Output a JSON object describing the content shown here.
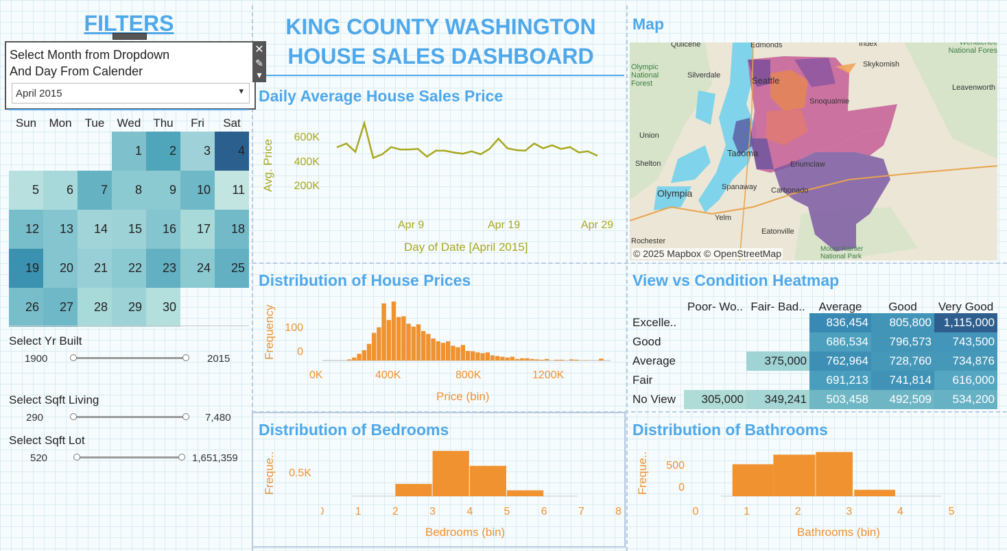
{
  "filters": {
    "title": "FILTERS",
    "dropdown_prompt_line1": "Select Month from Dropdown",
    "dropdown_prompt_line2": "And Day From Calender",
    "month_value": "April 2015",
    "close_icon": "close-icon",
    "pin_icon": "pin-icon",
    "calendar": {
      "days_of_week": [
        "Sun",
        "Mon",
        "Tue",
        "Wed",
        "Thu",
        "Fri",
        "Sat"
      ],
      "cells": [
        {
          "day": "1",
          "col": 3,
          "row": 0,
          "color": "#7ec0cc"
        },
        {
          "day": "2",
          "col": 4,
          "row": 0,
          "color": "#4fa6ba"
        },
        {
          "day": "3",
          "col": 5,
          "row": 0,
          "color": "#9ed2d8"
        },
        {
          "day": "4",
          "col": 6,
          "row": 0,
          "color": "#2b5f8e"
        },
        {
          "day": "5",
          "col": 0,
          "row": 1,
          "color": "#b7e0df"
        },
        {
          "day": "6",
          "col": 1,
          "row": 1,
          "color": "#a8d9da"
        },
        {
          "day": "7",
          "col": 2,
          "row": 1,
          "color": "#65b2c3"
        },
        {
          "day": "8",
          "col": 3,
          "row": 1,
          "color": "#8ccad2"
        },
        {
          "day": "9",
          "col": 4,
          "row": 1,
          "color": "#8ccad2"
        },
        {
          "day": "10",
          "col": 5,
          "row": 1,
          "color": "#6fb8c7"
        },
        {
          "day": "11",
          "col": 6,
          "row": 1,
          "color": "#c2e5e2"
        },
        {
          "day": "12",
          "col": 0,
          "row": 2,
          "color": "#78bdca"
        },
        {
          "day": "13",
          "col": 1,
          "row": 2,
          "color": "#85c5cf"
        },
        {
          "day": "14",
          "col": 2,
          "row": 2,
          "color": "#a0d4d8"
        },
        {
          "day": "15",
          "col": 3,
          "row": 2,
          "color": "#9dd2d7"
        },
        {
          "day": "16",
          "col": 4,
          "row": 2,
          "color": "#85c5cf"
        },
        {
          "day": "17",
          "col": 5,
          "row": 2,
          "color": "#a9dada"
        },
        {
          "day": "18",
          "col": 6,
          "row": 2,
          "color": "#73bac8"
        },
        {
          "day": "19",
          "col": 0,
          "row": 3,
          "color": "#3b92b0"
        },
        {
          "day": "20",
          "col": 1,
          "row": 3,
          "color": "#85c5cf"
        },
        {
          "day": "21",
          "col": 2,
          "row": 3,
          "color": "#98cfd6"
        },
        {
          "day": "22",
          "col": 3,
          "row": 3,
          "color": "#8ccad2"
        },
        {
          "day": "23",
          "col": 4,
          "row": 3,
          "color": "#63b0c2"
        },
        {
          "day": "24",
          "col": 5,
          "row": 3,
          "color": "#8ccad2"
        },
        {
          "day": "25",
          "col": 6,
          "row": 3,
          "color": "#63b0c2"
        },
        {
          "day": "26",
          "col": 0,
          "row": 4,
          "color": "#78bdca"
        },
        {
          "day": "27",
          "col": 1,
          "row": 4,
          "color": "#6fb8c7"
        },
        {
          "day": "28",
          "col": 2,
          "row": 4,
          "color": "#a9dada"
        },
        {
          "day": "29",
          "col": 3,
          "row": 4,
          "color": "#9dd2d7"
        },
        {
          "day": "30",
          "col": 4,
          "row": 4,
          "color": "#b3dfdd"
        }
      ]
    },
    "sliders": [
      {
        "label": "Select Yr Built",
        "min": "1900",
        "max": "2015"
      },
      {
        "label": "Select Sqft Living",
        "min": "290",
        "max": "7,480"
      },
      {
        "label": "Select Sqft Lot",
        "min": "520",
        "max": "1,651,359"
      }
    ]
  },
  "header": {
    "title_line1": "KING COUNTY WASHINGTON",
    "title_line2": "HOUSE SALES DASHBOARD"
  },
  "colors": {
    "title_blue": "#4ea8ea",
    "line_olive": "#a8a81e",
    "bar_orange": "#f0922f",
    "axis_orange": "#f0922f"
  },
  "daily_chart": {
    "title": "Daily Average House Sales Price",
    "ylabel": "Avg. Price",
    "xlabel": "Day of Date [April 2015]",
    "ytick_labels": [
      "600K",
      "400K",
      "200K"
    ],
    "xtick_labels": [
      "Apr 9",
      "Apr 19",
      "Apr 29"
    ]
  },
  "map": {
    "title": "Map",
    "attribution": "© 2025 Mapbox © OpenStreetMap",
    "places": [
      "Quilcene",
      "Edmonds",
      "Index",
      "Wenatchee National Fores",
      "Olympic National Forest",
      "Silverdale",
      "Skykomish",
      "Seattle",
      "Leavenworth",
      "Union",
      "Snoqualmie",
      "Shelton",
      "Tacoma",
      "Enumclaw",
      "Spanaway",
      "Carbonado",
      "Olympia",
      "Yelm",
      "Eatonville",
      "Rochester",
      "Mount Rainier National Park"
    ]
  },
  "price_chart": {
    "title": "Distribution of House Prices",
    "ylabel": "Frequency",
    "xlabel": "Price (bin)",
    "ytick_labels": [
      "100",
      "0"
    ],
    "xtick_labels": [
      "0K",
      "400K",
      "800K",
      "1200K"
    ]
  },
  "heatmap": {
    "title": "View vs Condition Heatmap",
    "columns": [
      "Poor- Wo..",
      "Fair- Bad..",
      "Average",
      "Good",
      "Very Good"
    ],
    "rows": [
      "Excelle..",
      "Good",
      "Average",
      "Fair",
      "No View"
    ]
  },
  "bedrooms_chart": {
    "title": "Distribution of Bedrooms",
    "ylabel": "Freque..",
    "xlabel": "Bedrooms (bin)",
    "ytick_labels": [
      "0.5K"
    ],
    "xtick_labels": [
      "0",
      "1",
      "2",
      "3",
      "4",
      "5",
      "6",
      "7",
      "8"
    ]
  },
  "bathrooms_chart": {
    "title": "Distribution of Bathrooms",
    "ylabel": "Freque..",
    "xlabel": "Bathrooms (bin)",
    "ytick_labels": [
      "500",
      "0"
    ],
    "xtick_labels": [
      "0",
      "1",
      "2",
      "3",
      "4",
      "5"
    ]
  },
  "chart_data": [
    {
      "type": "line",
      "title": "Daily Average House Sales Price",
      "xlabel": "Day of Date [April 2015]",
      "ylabel": "Avg. Price",
      "x": [
        1,
        2,
        3,
        4,
        5,
        6,
        7,
        8,
        9,
        10,
        11,
        12,
        13,
        14,
        15,
        16,
        17,
        18,
        19,
        20,
        21,
        22,
        23,
        24,
        25,
        26,
        27,
        28,
        29,
        30
      ],
      "values": [
        545000,
        575000,
        505000,
        745000,
        455000,
        485000,
        545000,
        525000,
        525000,
        530000,
        465000,
        515000,
        515000,
        500000,
        490000,
        510000,
        485000,
        530000,
        615000,
        535000,
        520000,
        515000,
        575000,
        535000,
        560000,
        530000,
        545000,
        500000,
        510000,
        475000
      ],
      "ylim": [
        0,
        800000
      ]
    },
    {
      "type": "bar",
      "title": "Distribution of House Prices",
      "xlabel": "Price (bin)",
      "ylabel": "Frequency",
      "categories": [
        "25K",
        "50K",
        "75K",
        "100K",
        "125K",
        "150K",
        "175K",
        "200K",
        "225K",
        "250K",
        "275K",
        "300K",
        "325K",
        "350K",
        "375K",
        "400K",
        "425K",
        "450K",
        "475K",
        "500K",
        "525K",
        "550K",
        "575K",
        "600K",
        "625K",
        "650K",
        "675K",
        "700K",
        "725K",
        "750K",
        "775K",
        "800K",
        "825K",
        "850K",
        "875K",
        "900K",
        "925K",
        "950K",
        "975K",
        "1000K",
        "1025K",
        "1050K",
        "1075K",
        "1100K",
        "1125K",
        "1150K",
        "1175K",
        "1200K",
        "1225K",
        "1250K",
        "1275K",
        "1300K",
        "1325K",
        "1350K",
        "1375K",
        "1400K",
        "1425K",
        "1450K"
      ],
      "values": [
        0,
        0,
        0,
        0,
        0,
        3,
        8,
        18,
        28,
        45,
        75,
        90,
        155,
        110,
        160,
        118,
        120,
        100,
        92,
        98,
        80,
        72,
        60,
        52,
        48,
        52,
        40,
        36,
        42,
        26,
        25,
        22,
        20,
        22,
        14,
        12,
        10,
        8,
        10,
        4,
        6,
        6,
        4,
        3,
        2,
        4,
        0,
        2,
        2,
        0,
        3,
        2,
        0,
        1,
        0,
        0,
        5,
        0
      ],
      "ylim": [
        0,
        160
      ]
    },
    {
      "type": "table",
      "title": "View vs Condition Heatmap",
      "columns": [
        "Poor- Wo..",
        "Fair- Bad..",
        "Average",
        "Good",
        "Very Good"
      ],
      "rows": [
        "Excelle..",
        "Good",
        "Average",
        "Fair",
        "No View"
      ],
      "values": [
        [
          null,
          null,
          "836,454",
          "805,800",
          "1,115,000"
        ],
        [
          null,
          null,
          "686,534",
          "796,573",
          "743,500"
        ],
        [
          null,
          "375,000",
          "762,964",
          "728,760",
          "734,876"
        ],
        [
          null,
          null,
          "691,213",
          "741,814",
          "616,000"
        ],
        [
          "305,000",
          "349,241",
          "503,458",
          "492,509",
          "534,200"
        ]
      ],
      "cell_colors": [
        [
          null,
          null,
          "#3889b3",
          "#4395b8",
          "#2e5e8d"
        ],
        [
          null,
          null,
          "#4c9fbd",
          "#4395b8",
          "#4396b9"
        ],
        [
          null,
          "#9fd3d4",
          "#3d8fb5",
          "#4698b9",
          "#4698b9"
        ],
        [
          null,
          null,
          "#4a9ebd",
          "#4092b7",
          "#55a6c0"
        ],
        [
          "#b0dcd7",
          "#a6d6d5",
          "#6fb7c5",
          "#6fb6c5",
          "#66b1c4"
        ]
      ]
    },
    {
      "type": "bar",
      "title": "Distribution of Bedrooms",
      "xlabel": "Bedrooms (bin)",
      "ylabel": "Freque..",
      "categories": [
        "1",
        "2",
        "3",
        "4",
        "5",
        "6",
        "7"
      ],
      "values": [
        0,
        230,
        850,
        570,
        110,
        0,
        0
      ],
      "ylim": [
        0,
        850
      ]
    },
    {
      "type": "bar",
      "title": "Distribution of Bathrooms",
      "xlabel": "Bathrooms (bin)",
      "ylabel": "Freque..",
      "categories": [
        "0",
        "1",
        "2",
        "3",
        "4"
      ],
      "values": [
        0,
        600,
        780,
        830,
        120
      ],
      "ylim": [
        0,
        850
      ]
    }
  ]
}
